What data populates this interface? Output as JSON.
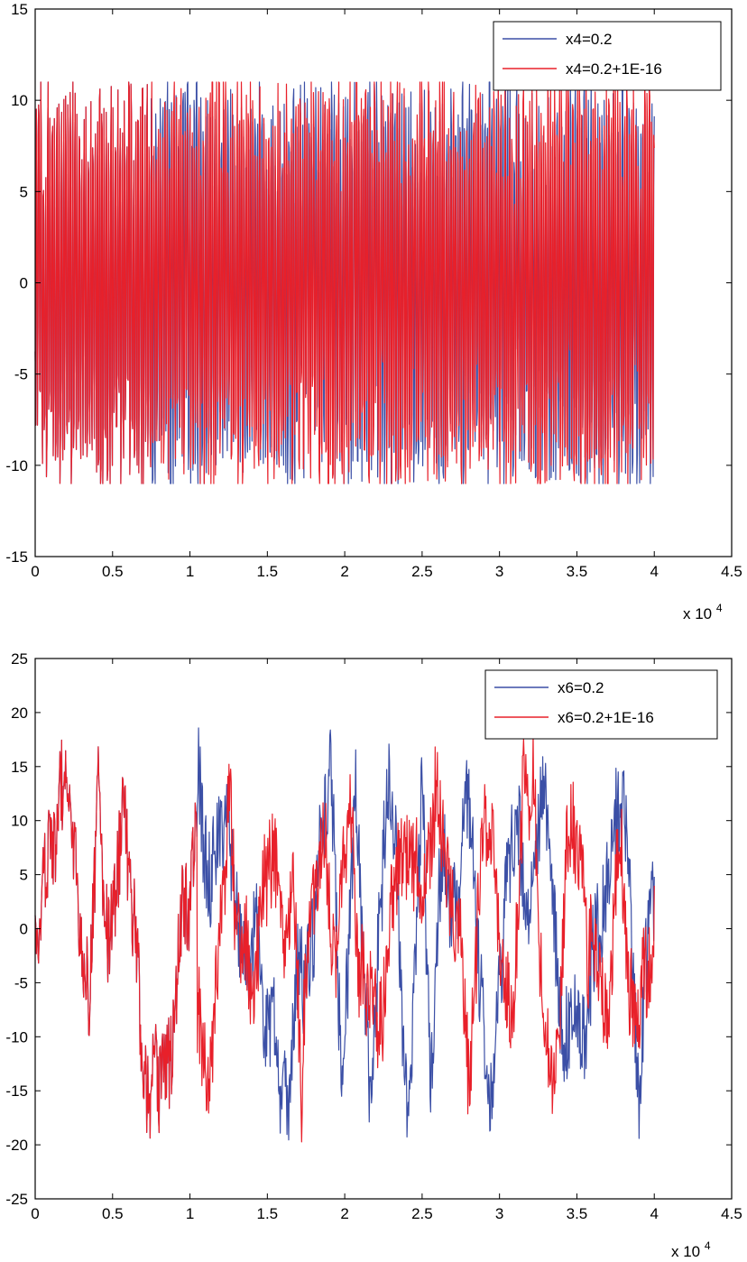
{
  "chart_data": [
    {
      "type": "line",
      "title": "",
      "xlabel": "",
      "ylabel": "",
      "x_multiplier_label": "x 10",
      "x_multiplier_exp": "4",
      "xlim": [
        0,
        4.5
      ],
      "ylim": [
        -15,
        15
      ],
      "xticks": [
        "0",
        "0.5",
        "1",
        "1.5",
        "2",
        "2.5",
        "3",
        "3.5",
        "4",
        "4.5"
      ],
      "yticks": [
        "15",
        "10",
        "5",
        "0",
        "-5",
        "-10",
        "-15"
      ],
      "grid": false,
      "legend_position": "top-right",
      "x_end": 4.0,
      "diverge_x": 0.75,
      "series": [
        {
          "name": "x4=0.2",
          "color": "#3b4fa6",
          "amplitude": 11,
          "signal": "oscillating"
        },
        {
          "name": "x4=0.2+1E-16",
          "color": "#e8202a",
          "amplitude": 11,
          "signal": "oscillating"
        }
      ]
    },
    {
      "type": "line",
      "title": "",
      "xlabel": "",
      "ylabel": "",
      "x_multiplier_label": "x 10",
      "x_multiplier_exp": "4",
      "xlim": [
        0,
        4.5
      ],
      "ylim": [
        -25,
        25
      ],
      "xticks": [
        "0",
        "0.5",
        "1",
        "1.5",
        "2",
        "2.5",
        "3",
        "3.5",
        "4",
        "4.5"
      ],
      "yticks": [
        "25",
        "20",
        "15",
        "10",
        "5",
        "0",
        "-5",
        "-10",
        "-15",
        "-20",
        "-25"
      ],
      "grid": false,
      "legend_position": "top-right",
      "x_end": 4.0,
      "diverge_x": 1.05,
      "series": [
        {
          "name": "x6=0.2",
          "color": "#3b4fa6",
          "amplitude": 20,
          "signal": "wandering"
        },
        {
          "name": "x6=0.2+1E-16",
          "color": "#e8202a",
          "amplitude": 20,
          "signal": "wandering"
        }
      ]
    }
  ]
}
